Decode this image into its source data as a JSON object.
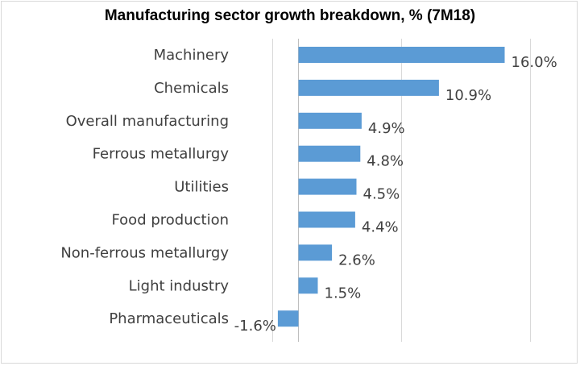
{
  "chart_data": {
    "type": "bar",
    "orientation": "horizontal",
    "title": "Manufacturing sector growth breakdown, % (7M18)",
    "categories": [
      "Machinery",
      "Chemicals",
      "Overall manufacturing",
      "Ferrous metallurgy",
      "Utilities",
      "Food production",
      "Non-ferrous metallurgy",
      "Light industry",
      "Pharmaceuticals"
    ],
    "values": [
      16.0,
      10.9,
      4.9,
      4.8,
      4.5,
      4.4,
      2.6,
      1.5,
      -1.6
    ],
    "data_labels": [
      "16.0%",
      "10.9%",
      "4.9%",
      "4.8%",
      "4.5%",
      "4.4%",
      "2.6%",
      "1.5%",
      "-1.6%"
    ],
    "xlim": [
      -2,
      18
    ],
    "grid": true,
    "legend": "none",
    "bar_color": "#5b9bd5",
    "grid_color": "#d9d9d9"
  }
}
